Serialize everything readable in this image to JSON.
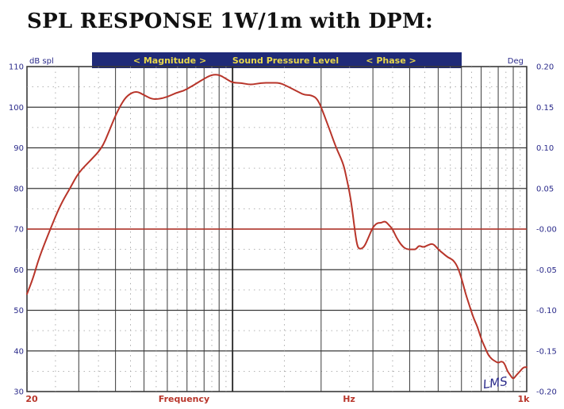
{
  "title": "SPL RESPONSE 1W/1m with DPM:",
  "chart_data": {
    "type": "line",
    "header": {
      "magnitude": "< Magnitude >",
      "sound_pressure_level": "Sound Pressure Level",
      "phase": "< Phase >"
    },
    "left_unit": "dB spl",
    "right_unit": "Deg",
    "xlabel": "Frequency",
    "xunit": "Hz",
    "xscale": "log",
    "xlim": [
      20,
      1000
    ],
    "x_tick_labels": [
      "20",
      "1k"
    ],
    "ylim": [
      30,
      110
    ],
    "y_ticks": [
      30,
      40,
      50,
      60,
      70,
      80,
      90,
      100,
      110
    ],
    "right_ylim": [
      -0.2,
      0.2
    ],
    "right_tick_labels": [
      "0.20",
      "0.15",
      "0.10",
      "0.05",
      "-0.00",
      "-0.05",
      "-0.10",
      "-0.15",
      "-0.20"
    ],
    "grid": true,
    "signature": "LMS",
    "series": [
      {
        "color": "#b8352a",
        "x": [
          20,
          21,
          22,
          24,
          26,
          28,
          30,
          33,
          36,
          38,
          40,
          42,
          44,
          47,
          50,
          53,
          56,
          60,
          64,
          68,
          72,
          76,
          80,
          85,
          90,
          95,
          100,
          107,
          115,
          125,
          135,
          145,
          155,
          165,
          175,
          185,
          195,
          205,
          215,
          225,
          235,
          240,
          245,
          250,
          255,
          260,
          265,
          270,
          280,
          290,
          300,
          310,
          320,
          330,
          340,
          350,
          360,
          375,
          390,
          410,
          420,
          430,
          445,
          460,
          480,
          500,
          520,
          540,
          560,
          580,
          600,
          620,
          640,
          660,
          680,
          700,
          720,
          740,
          760,
          780,
          800,
          820,
          840,
          860,
          880,
          900,
          920,
          950,
          975,
          1000
        ],
        "y": [
          54,
          58,
          63,
          70,
          76,
          80,
          84,
          87,
          90,
          94,
          98,
          101,
          103,
          104,
          103,
          102,
          102,
          102.5,
          103.5,
          104,
          105,
          106,
          107,
          108,
          108,
          107,
          106,
          106,
          105.5,
          106,
          106,
          106,
          105,
          104,
          103,
          103,
          102,
          98,
          94,
          90,
          87,
          85,
          82,
          79,
          75,
          70,
          66,
          65,
          65.5,
          68,
          70.5,
          71.5,
          71.5,
          72,
          71,
          70,
          68,
          66,
          65,
          65,
          65,
          66,
          65.5,
          66,
          66.5,
          65,
          64,
          63,
          62.5,
          61,
          58,
          54,
          51,
          48,
          46,
          43,
          41,
          39,
          38,
          37.5,
          37,
          37.5,
          37,
          35,
          34,
          33,
          34,
          35,
          36,
          36
        ]
      }
    ],
    "reference_line": {
      "y": 70,
      "color": "#b8352a"
    }
  }
}
